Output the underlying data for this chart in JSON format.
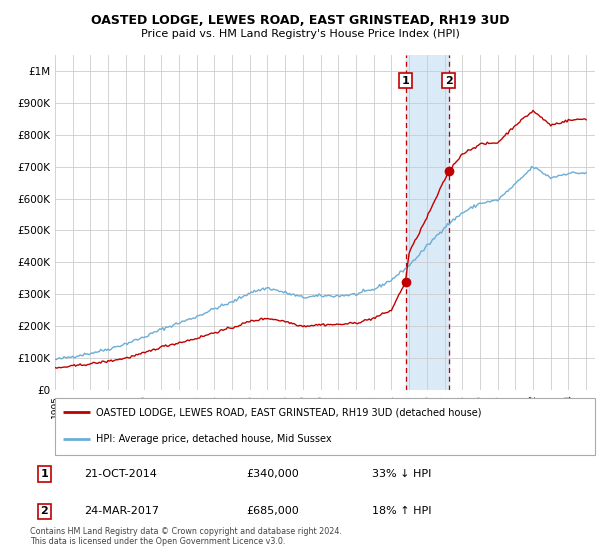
{
  "title": "OASTED LODGE, LEWES ROAD, EAST GRINSTEAD, RH19 3UD",
  "subtitle": "Price paid vs. HM Land Registry's House Price Index (HPI)",
  "legend_line1": "OASTED LODGE, LEWES ROAD, EAST GRINSTEAD, RH19 3UD (detached house)",
  "legend_line2": "HPI: Average price, detached house, Mid Sussex",
  "table_rows": [
    {
      "num": "1",
      "date": "21-OCT-2014",
      "price": "£340,000",
      "hpi": "33% ↓ HPI"
    },
    {
      "num": "2",
      "date": "24-MAR-2017",
      "price": "£685,000",
      "hpi": "18% ↑ HPI"
    }
  ],
  "footnote": "Contains HM Land Registry data © Crown copyright and database right 2024.\nThis data is licensed under the Open Government Licence v3.0.",
  "sale1_year": 2014.8,
  "sale1_price": 340000,
  "sale2_year": 2017.23,
  "sale2_price": 685000,
  "hpi_color": "#6aaed6",
  "sale_color": "#c00000",
  "shade_color": "#daeaf7",
  "ylim": [
    0,
    1050000
  ],
  "xlim_start": 1995.0,
  "xlim_end": 2025.5,
  "background_color": "#ffffff",
  "grid_color": "#cccccc",
  "hpi_anchors_x": [
    1995,
    1996,
    1997,
    1998,
    1999,
    2000,
    2001,
    2002,
    2003,
    2004,
    2005,
    2006,
    2007,
    2008,
    2009,
    2010,
    2011,
    2012,
    2013,
    2014,
    2015,
    2016,
    2017,
    2018,
    2019,
    2020,
    2021,
    2022,
    2023,
    2024,
    2025
  ],
  "hpi_anchors_y": [
    95000,
    105000,
    115000,
    128000,
    145000,
    165000,
    190000,
    210000,
    230000,
    255000,
    275000,
    305000,
    320000,
    305000,
    290000,
    295000,
    295000,
    300000,
    315000,
    345000,
    390000,
    450000,
    510000,
    555000,
    585000,
    595000,
    645000,
    700000,
    665000,
    680000,
    680000
  ],
  "red_anchors_x": [
    1995,
    1996,
    1997,
    1998,
    1999,
    2000,
    2001,
    2002,
    2003,
    2004,
    2005,
    2006,
    2007,
    2008,
    2009,
    2010,
    2011,
    2012,
    2013,
    2014,
    2014.8,
    2015,
    2016,
    2017.23,
    2018,
    2019,
    2020,
    2021,
    2022,
    2023,
    2024,
    2025
  ],
  "red_anchors_y": [
    68000,
    75000,
    82000,
    90000,
    100000,
    115000,
    135000,
    148000,
    162000,
    180000,
    195000,
    215000,
    225000,
    215000,
    200000,
    205000,
    205000,
    210000,
    225000,
    250000,
    340000,
    430000,
    540000,
    685000,
    740000,
    770000,
    775000,
    830000,
    875000,
    830000,
    845000,
    850000
  ]
}
